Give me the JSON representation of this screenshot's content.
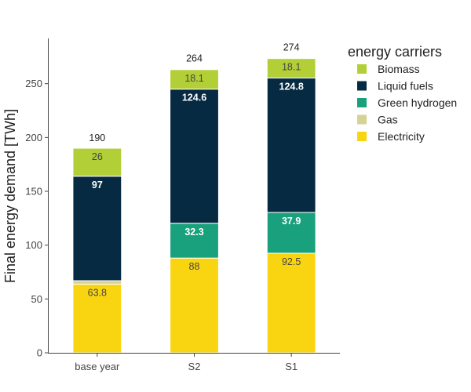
{
  "chart_data": {
    "type": "bar",
    "stacked": true,
    "categories": [
      "base year",
      "S2",
      "S1"
    ],
    "series": [
      {
        "name": "Electricity",
        "color": "#f9d511",
        "label_color": "#444444",
        "values": [
          63.8,
          88,
          92.5
        ],
        "labels": [
          "63.8",
          "88",
          "92.5"
        ]
      },
      {
        "name": "Gas",
        "color": "#d4d393",
        "label_color": "#444444",
        "values": [
          3.2,
          null,
          null
        ],
        "labels": [
          "",
          "",
          ""
        ]
      },
      {
        "name": "Green hydrogen",
        "color": "#19a07c",
        "label_color": "#ffffff",
        "values": [
          null,
          32.3,
          37.9
        ],
        "labels": [
          "",
          "32.3",
          "37.9"
        ]
      },
      {
        "name": "Liquid fuels",
        "color": "#062a42",
        "label_color": "#ffffff",
        "values": [
          97,
          124.6,
          124.8
        ],
        "labels": [
          "97",
          "124.6",
          "124.8"
        ]
      },
      {
        "name": "Biomass",
        "color": "#b3cf37",
        "label_color": "#444444",
        "values": [
          26,
          18.1,
          18.1
        ],
        "labels": [
          "26",
          "18.1",
          "18.1"
        ]
      }
    ],
    "totals": [
      190,
      264,
      274
    ],
    "total_labels": [
      "190",
      "264",
      "274"
    ],
    "legend_order": [
      "Biomass",
      "Liquid fuels",
      "Green hydrogen",
      "Gas",
      "Electricity"
    ],
    "legend_title": "energy carriers",
    "legend_position": "top-right",
    "title": "",
    "xlabel": "",
    "ylabel": "Final energy demand [TWh]",
    "ylim": [
      0,
      292
    ],
    "yticks": [
      0,
      50,
      100,
      150,
      200,
      250
    ],
    "grid": false
  }
}
